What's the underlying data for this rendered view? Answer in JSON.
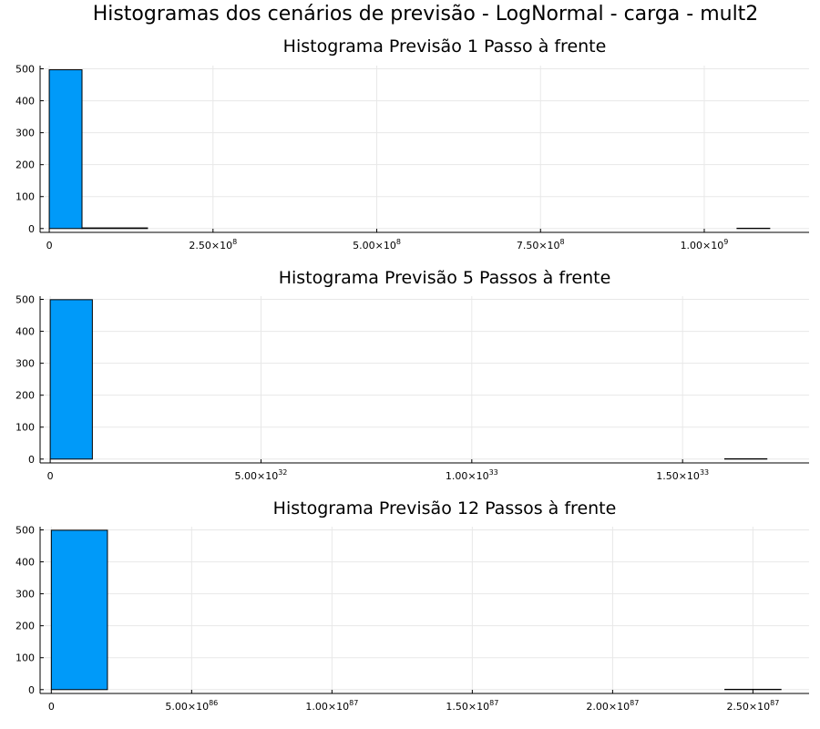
{
  "figure_title": "Histogramas dos cenários de previsão - LogNormal - carga - mult2",
  "colors": {
    "bar": "#009af9",
    "axis": "#000000",
    "grid": "#e8e8e8"
  },
  "chart_data": [
    {
      "type": "bar",
      "title": "Histograma Previsão 1 Passo à frente",
      "xlabel": "",
      "ylabel": "",
      "xlim": [
        -14000000,
        1160000000
      ],
      "ylim": [
        -12,
        510
      ],
      "grid": true,
      "legend": "none",
      "xticks": [
        {
          "value": 0,
          "mant": "0",
          "exp": ""
        },
        {
          "value": 250000000,
          "mant": "2.50×10",
          "exp": "8"
        },
        {
          "value": 500000000,
          "mant": "5.00×10",
          "exp": "8"
        },
        {
          "value": 750000000,
          "mant": "7.50×10",
          "exp": "8"
        },
        {
          "value": 1000000000,
          "mant": "1.00×10",
          "exp": "9"
        }
      ],
      "yticks": [
        0,
        100,
        200,
        300,
        400,
        500
      ],
      "bins": [
        {
          "x0": 0,
          "x1": 50000000,
          "count": 497
        },
        {
          "x0": 50000000,
          "x1": 150000000,
          "count": 2
        },
        {
          "x0": 150000000,
          "x1": 1050000000,
          "count": 0
        },
        {
          "x0": 1050000000,
          "x1": 1100000000,
          "count": 1
        }
      ]
    },
    {
      "type": "bar",
      "title": "Histograma Previsão 5 Passos à frente",
      "xlabel": "",
      "ylabel": "",
      "xlim": [
        -2.4e+31,
        1.8e+33
      ],
      "ylim": [
        -12,
        510
      ],
      "grid": true,
      "legend": "none",
      "xticks": [
        {
          "value": 0,
          "mant": "0",
          "exp": ""
        },
        {
          "value": 5e+32,
          "mant": "5.00×10",
          "exp": "32"
        },
        {
          "value": 1e+33,
          "mant": "1.00×10",
          "exp": "33"
        },
        {
          "value": 1.5e+33,
          "mant": "1.50×10",
          "exp": "33"
        }
      ],
      "yticks": [
        0,
        100,
        200,
        300,
        400,
        500
      ],
      "bins": [
        {
          "x0": 0,
          "x1": 1e+32,
          "count": 499
        },
        {
          "x0": 1e+32,
          "x1": 1.6e+33,
          "count": 0
        },
        {
          "x0": 1.6e+33,
          "x1": 1.7e+33,
          "count": 1
        }
      ]
    },
    {
      "type": "bar",
      "title": "Histograma Previsão 12 Passos à frente",
      "xlabel": "",
      "ylabel": "",
      "xlim": [
        -4e+85,
        2.7e+87
      ],
      "ylim": [
        -12,
        510
      ],
      "grid": true,
      "legend": "none",
      "xticks": [
        {
          "value": 0,
          "mant": "0",
          "exp": ""
        },
        {
          "value": 5e+86,
          "mant": "5.00×10",
          "exp": "86"
        },
        {
          "value": 1e+87,
          "mant": "1.00×10",
          "exp": "87"
        },
        {
          "value": 1.5e+87,
          "mant": "1.50×10",
          "exp": "87"
        },
        {
          "value": 2e+87,
          "mant": "2.00×10",
          "exp": "87"
        },
        {
          "value": 2.5e+87,
          "mant": "2.50×10",
          "exp": "87"
        }
      ],
      "yticks": [
        0,
        100,
        200,
        300,
        400,
        500
      ],
      "bins": [
        {
          "x0": 0,
          "x1": 2e+86,
          "count": 499
        },
        {
          "x0": 2e+86,
          "x1": 2.4e+87,
          "count": 0
        },
        {
          "x0": 2.4e+87,
          "x1": 2.6e+87,
          "count": 1
        }
      ]
    }
  ]
}
